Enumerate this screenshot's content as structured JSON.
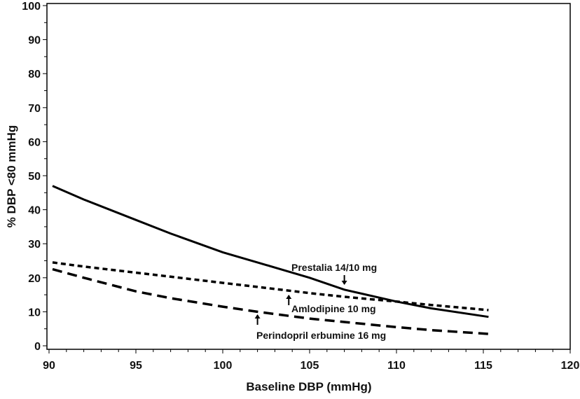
{
  "chart_data": {
    "type": "line",
    "title": "",
    "xlabel": "Baseline DBP (mmHg)",
    "ylabel": "% DBP <80 mmHg",
    "xlim": [
      90,
      120
    ],
    "ylim": [
      0,
      100
    ],
    "xticks": [
      90,
      95,
      100,
      105,
      110,
      115,
      120
    ],
    "yticks": [
      0,
      10,
      20,
      30,
      40,
      50,
      60,
      70,
      80,
      90,
      100
    ],
    "grid": false,
    "legend": "none (inline annotations)",
    "series": [
      {
        "name": "Prestalia 14/10 mg",
        "style": "solid",
        "x": [
          90.2,
          92,
          95,
          97,
          100,
          102,
          105,
          107,
          110,
          112,
          115.3
        ],
        "y": [
          47,
          43,
          37,
          33,
          27.5,
          24.5,
          20,
          16.5,
          13,
          11,
          8.5
        ]
      },
      {
        "name": "Amlodipine 10 mg",
        "style": "dotted",
        "x": [
          90.2,
          92,
          95,
          97,
          100,
          102,
          105,
          107,
          110,
          112,
          115.3
        ],
        "y": [
          24.5,
          23.3,
          21.5,
          20.3,
          18.5,
          17.3,
          15.5,
          14.4,
          13,
          12,
          10.5
        ]
      },
      {
        "name": "Perindopril erbumine 16 mg",
        "style": "dashed",
        "x": [
          90.2,
          92,
          95,
          97,
          100,
          102,
          105,
          107,
          110,
          112,
          115.3
        ],
        "y": [
          22.5,
          20,
          16,
          14,
          11.5,
          10,
          8,
          7,
          5.5,
          4.6,
          3.5
        ]
      }
    ],
    "annotations": [
      {
        "text": "Prestalia 14/10 mg",
        "arrow": "down",
        "x": 107,
        "y": 16.5
      },
      {
        "text": "Amlodipine 10 mg",
        "arrow": "up",
        "x": 103.8,
        "y": 15.8
      },
      {
        "text": "Perindopril erbumine 16 mg",
        "arrow": "up",
        "x": 102,
        "y": 9.8
      }
    ]
  }
}
